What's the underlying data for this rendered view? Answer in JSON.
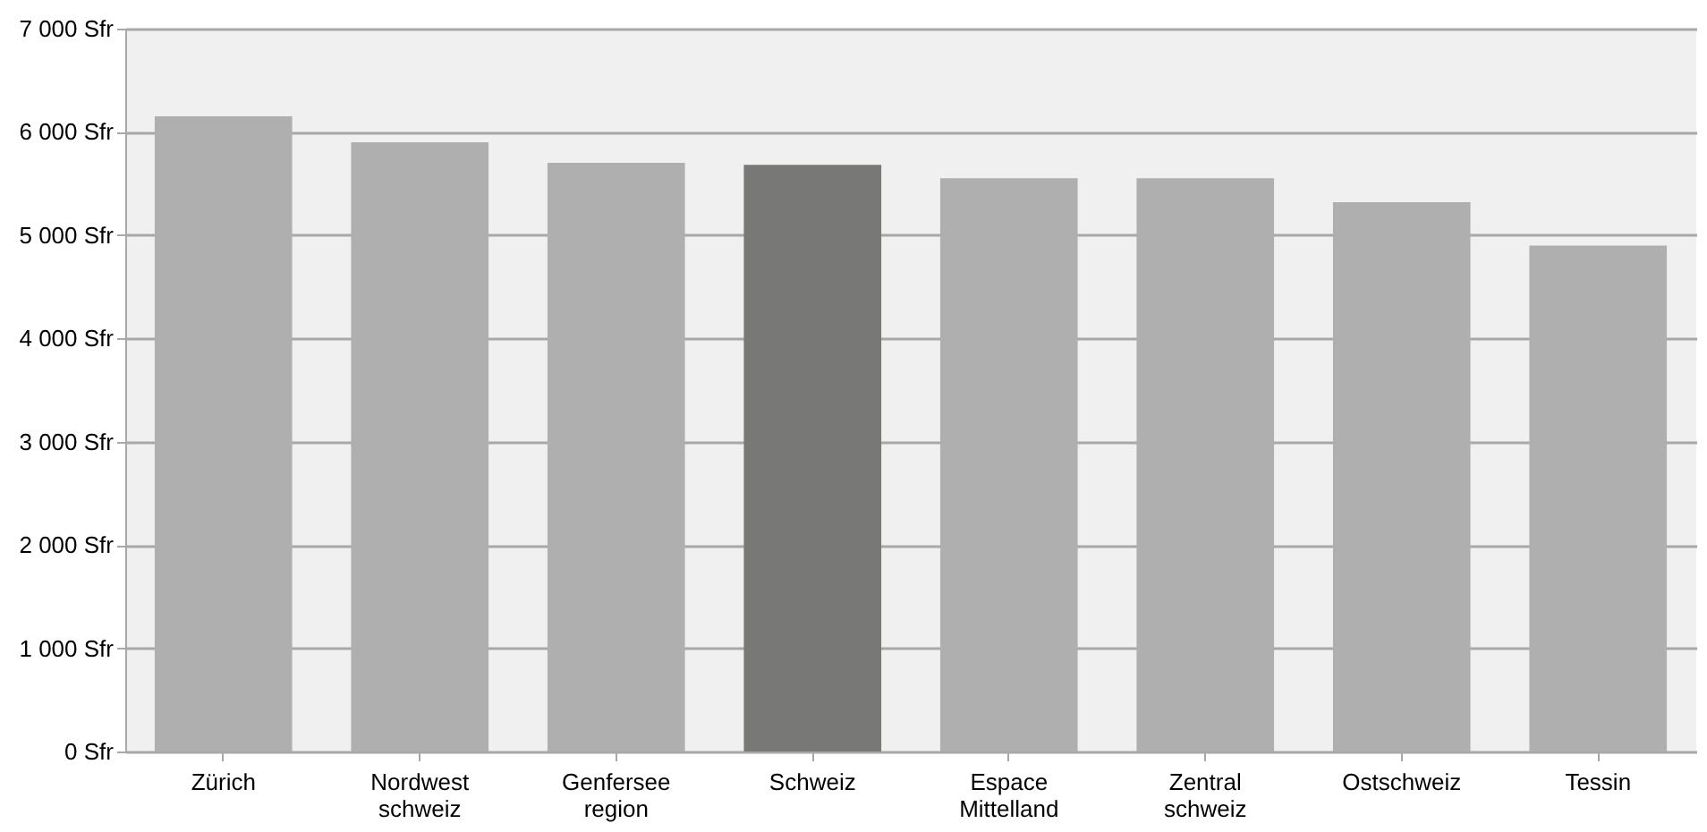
{
  "chart_data": {
    "type": "bar",
    "categories": [
      "Zürich",
      "Nordwest\nschweiz",
      "Genfersee\nregion",
      "Schweiz",
      "Espace\nMittelland",
      "Zentral\nschweiz",
      "Ostschweiz",
      "Tessin"
    ],
    "values": [
      6150,
      5900,
      5700,
      5680,
      5550,
      5550,
      5320,
      4900
    ],
    "colors": [
      "#afafaf",
      "#afafaf",
      "#afafaf",
      "#787876",
      "#afafaf",
      "#afafaf",
      "#afafaf",
      "#afafaf"
    ],
    "ylim": [
      0,
      7000
    ],
    "yticks": [
      {
        "value": 0,
        "label": "0 Sfr"
      },
      {
        "value": 1000,
        "label": "1 000 Sfr"
      },
      {
        "value": 2000,
        "label": "2 000 Sfr"
      },
      {
        "value": 3000,
        "label": "3 000 Sfr"
      },
      {
        "value": 4000,
        "label": "4 000 Sfr"
      },
      {
        "value": 5000,
        "label": "5 000 Sfr"
      },
      {
        "value": 6000,
        "label": "6 000 Sfr"
      },
      {
        "value": 7000,
        "label": "7 000 Sfr"
      }
    ],
    "grid": "y"
  }
}
